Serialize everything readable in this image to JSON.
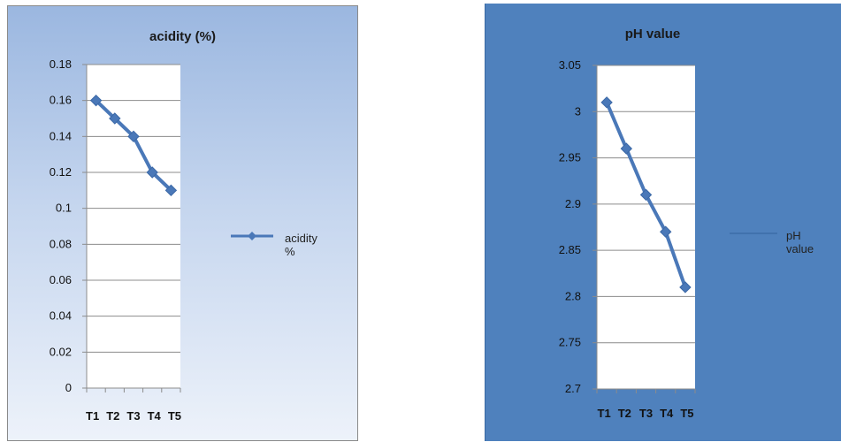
{
  "chart_data": [
    {
      "type": "line",
      "title": "acidity (%)",
      "categories": [
        "T1",
        "T2",
        "T3",
        "T4",
        "T5"
      ],
      "series": [
        {
          "name": "acidity %",
          "values": [
            0.16,
            0.15,
            0.14,
            0.12,
            0.11
          ],
          "color": "#4a78b8"
        }
      ],
      "ylim": [
        0,
        0.18
      ],
      "yticks": [
        0,
        0.02,
        0.04,
        0.06,
        0.08,
        0.1,
        0.12,
        0.14,
        0.16,
        0.18
      ],
      "ytick_labels": [
        "0",
        "0.02",
        "0.04",
        "0.06",
        "0.08",
        "0.1",
        "0.12",
        "0.14",
        "0.16",
        "0.18"
      ],
      "legend": {
        "position": "right",
        "label_lines": [
          "acidity",
          "%"
        ]
      },
      "grid": true,
      "background": "gradient light blue",
      "plot_background": "#ffffff"
    },
    {
      "type": "line",
      "title": "pH value",
      "categories": [
        "T1",
        "T2",
        "T3",
        "T4",
        "T5"
      ],
      "series": [
        {
          "name": "pH value",
          "values": [
            3.01,
            2.96,
            2.91,
            2.87,
            2.81
          ],
          "color": "#4a78b8"
        }
      ],
      "ylim": [
        2.7,
        3.05
      ],
      "yticks": [
        2.7,
        2.75,
        2.8,
        2.85,
        2.9,
        2.95,
        3.0,
        3.05
      ],
      "ytick_labels": [
        "2.7",
        "2.75",
        "2.8",
        "2.85",
        "2.9",
        "2.95",
        "3",
        "3.05"
      ],
      "legend": {
        "position": "right",
        "label_lines": [
          "pH",
          "value"
        ]
      },
      "grid": true,
      "background": "#4f81bd",
      "plot_background": "#ffffff"
    }
  ]
}
